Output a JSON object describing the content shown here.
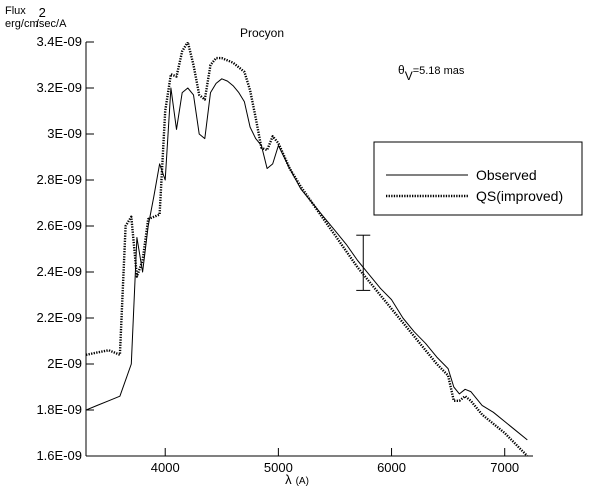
{
  "chart_data": {
    "type": "line",
    "title": "Procyon",
    "ylabel_line1": "Flux",
    "ylabel_line2": "erg/cm",
    "ylabel_sup": "2",
    "ylabel_line3": "/sec/A",
    "xlabel_symbol": "λ",
    "xlabel_unit": "(A)",
    "annotation": {
      "symbol": "θ",
      "subscript": "V",
      "value_text": "=5.18 mas"
    },
    "xlim": [
      3300,
      7250
    ],
    "ylim": [
      1.6e-09,
      3.4e-09
    ],
    "x_ticks": [
      4000,
      5000,
      6000,
      7000
    ],
    "x_tick_labels": [
      "4000",
      "5000",
      "6000",
      "7000"
    ],
    "y_ticks": [
      1.6e-09,
      1.8e-09,
      2e-09,
      2.2e-09,
      2.4e-09,
      2.6e-09,
      2.8e-09,
      3e-09,
      3.2e-09,
      3.4e-09
    ],
    "y_tick_labels": [
      "1.6E-09",
      "1.8E-09",
      "2E-09",
      "2.2E-09",
      "2.4E-09",
      "2.6E-09",
      "2.8E-09",
      "3E-09",
      "3.2E-09",
      "3.4E-09"
    ],
    "grid": false,
    "legend_position": "right",
    "series": [
      {
        "name": "Observed",
        "style": "solid",
        "color": "#000000",
        "x": [
          3300,
          3400,
          3500,
          3600,
          3700,
          3750,
          3800,
          3850,
          3900,
          3950,
          4000,
          4050,
          4100,
          4150,
          4200,
          4250,
          4300,
          4350,
          4400,
          4450,
          4500,
          4550,
          4600,
          4650,
          4700,
          4750,
          4800,
          4850,
          4900,
          4950,
          5000,
          5100,
          5200,
          5300,
          5400,
          5500,
          5600,
          5700,
          5800,
          5900,
          6000,
          6100,
          6200,
          6300,
          6400,
          6500,
          6550,
          6600,
          6650,
          6700,
          6800,
          6900,
          7000,
          7100,
          7200
        ],
        "y": [
          1.8e-09,
          1.82e-09,
          1.84e-09,
          1.86e-09,
          2e-09,
          2.55e-09,
          2.4e-09,
          2.6e-09,
          2.73e-09,
          2.87e-09,
          2.8e-09,
          3.2e-09,
          3.02e-09,
          3.18e-09,
          3.2e-09,
          3.17e-09,
          3e-09,
          2.98e-09,
          3.18e-09,
          3.22e-09,
          3.24e-09,
          3.23e-09,
          3.21e-09,
          3.18e-09,
          3.14e-09,
          3.03e-09,
          2.98e-09,
          2.95e-09,
          2.85e-09,
          2.87e-09,
          2.95e-09,
          2.85e-09,
          2.76e-09,
          2.7e-09,
          2.64e-09,
          2.58e-09,
          2.52e-09,
          2.45e-09,
          2.39e-09,
          2.33e-09,
          2.28e-09,
          2.2e-09,
          2.14e-09,
          2.09e-09,
          2.03e-09,
          1.98e-09,
          1.9e-09,
          1.87e-09,
          1.89e-09,
          1.88e-09,
          1.82e-09,
          1.79e-09,
          1.75e-09,
          1.71e-09,
          1.67e-09
        ]
      },
      {
        "name": "QS(improved)",
        "style": "dotted",
        "color": "#000000",
        "x": [
          3300,
          3400,
          3500,
          3600,
          3650,
          3700,
          3750,
          3800,
          3850,
          3900,
          3950,
          4000,
          4050,
          4100,
          4150,
          4200,
          4250,
          4300,
          4350,
          4400,
          4450,
          4500,
          4550,
          4600,
          4650,
          4700,
          4750,
          4800,
          4850,
          4900,
          4950,
          5000,
          5100,
          5200,
          5300,
          5400,
          5500,
          5600,
          5700,
          5800,
          5900,
          6000,
          6100,
          6200,
          6300,
          6400,
          6500,
          6550,
          6600,
          6650,
          6700,
          6800,
          6900,
          7000,
          7100,
          7200
        ],
        "y": [
          2.04e-09,
          2.05e-09,
          2.06e-09,
          2.04e-09,
          2.6e-09,
          2.64e-09,
          2.38e-09,
          2.45e-09,
          2.63e-09,
          2.64e-09,
          2.65e-09,
          3.1e-09,
          3.26e-09,
          3.25e-09,
          3.36e-09,
          3.4e-09,
          3.3e-09,
          3.17e-09,
          3.15e-09,
          3.3e-09,
          3.33e-09,
          3.33e-09,
          3.32e-09,
          3.31e-09,
          3.29e-09,
          3.27e-09,
          3.19e-09,
          3.07e-09,
          2.94e-09,
          2.93e-09,
          2.99e-09,
          2.96e-09,
          2.85e-09,
          2.77e-09,
          2.7e-09,
          2.63e-09,
          2.56e-09,
          2.49e-09,
          2.42e-09,
          2.36e-09,
          2.3e-09,
          2.24e-09,
          2.18e-09,
          2.12e-09,
          2.06e-09,
          2e-09,
          1.95e-09,
          1.84e-09,
          1.84e-09,
          1.86e-09,
          1.84e-09,
          1.78e-09,
          1.74e-09,
          1.7e-09,
          1.65e-09,
          1.6e-09
        ]
      }
    ],
    "error_bar": {
      "x": 5750,
      "y_low": 2.32e-09,
      "y_high": 2.56e-09
    }
  }
}
